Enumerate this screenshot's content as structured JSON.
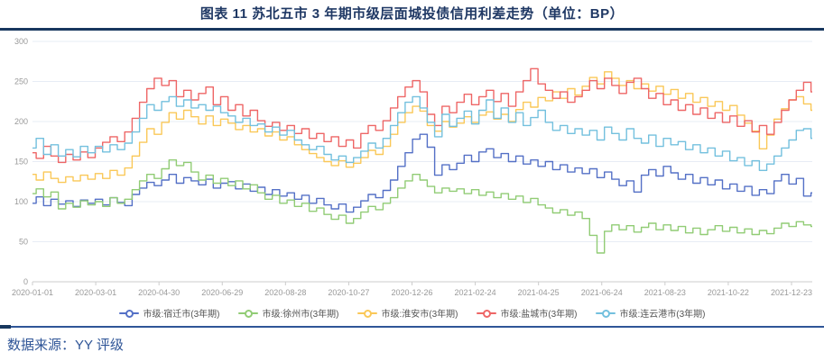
{
  "header": {
    "title": "图表 11 苏北五市 3 年期市级层面城投债信用利差走势（单位：BP）"
  },
  "footer": {
    "source": "数据来源：YY 评级"
  },
  "colors": {
    "title_navy": "#1F3864",
    "rule_navy": "#17375E",
    "footer_blue": "#2F5597",
    "axis_label_gray": "#999999",
    "axis_line": "#CCCCCC",
    "gridline": "#E7ECF5",
    "legend_text": "#555555",
    "background": "#FFFFFF"
  },
  "chart_data": {
    "type": "line",
    "title": "图表 11 苏北五市 3 年期市级层面城投债信用利差走势（单位：BP）",
    "unit": "BP",
    "ylabel": "",
    "xlabel": "",
    "ylim": [
      0,
      300
    ],
    "y_ticks": [
      0,
      50,
      100,
      150,
      200,
      250,
      300
    ],
    "grid": true,
    "legend_position": "bottom",
    "x_start": "2020-01-01",
    "x_end": "2022-01-12",
    "x_sampling": "weekly",
    "x_tick_labels": [
      "2020-01-01",
      "2020-03-01",
      "2020-04-30",
      "2020-06-29",
      "2020-08-28",
      "2020-10-27",
      "2020-12-26",
      "2021-02-24",
      "2021-04-25",
      "2021-06-24",
      "2021-08-23",
      "2021-10-22",
      "2021-12-23"
    ],
    "series": [
      {
        "name": "市级:宿迁市(3年期)",
        "color": "#5470C6",
        "values": [
          98,
          106,
          95,
          103,
          97,
          101,
          94,
          102,
          98,
          103,
          96,
          105,
          99,
          95,
          109,
          117,
          124,
          120,
          127,
          134,
          123,
          130,
          126,
          121,
          128,
          117,
          123,
          125,
          116,
          122,
          113,
          118,
          109,
          115,
          107,
          111,
          103,
          108,
          98,
          104,
          96,
          91,
          97,
          87,
          93,
          101,
          109,
          105,
          114,
          127,
          144,
          161,
          178,
          184,
          168,
          133,
          146,
          140,
          148,
          158,
          150,
          162,
          166,
          155,
          160,
          150,
          157,
          147,
          152,
          144,
          150,
          140,
          146,
          137,
          142,
          135,
          141,
          130,
          137,
          128,
          120,
          126,
          112,
          133,
          140,
          132,
          144,
          136,
          128,
          134,
          123,
          130,
          121,
          127,
          116,
          122,
          113,
          119,
          108,
          115,
          110,
          126,
          134,
          122,
          129,
          107,
          111
        ]
      },
      {
        "name": "市级:徐州市(3年期)",
        "color": "#91CC75",
        "values": [
          110,
          116,
          106,
          112,
          91,
          98,
          93,
          101,
          96,
          100,
          94,
          105,
          98,
          103,
          115,
          126,
          134,
          129,
          141,
          152,
          145,
          149,
          137,
          127,
          133,
          123,
          129,
          120,
          126,
          116,
          121,
          111,
          103,
          108,
          98,
          102,
          94,
          98,
          88,
          92,
          84,
          78,
          83,
          73,
          79,
          87,
          94,
          90,
          98,
          105,
          117,
          126,
          134,
          127,
          119,
          111,
          117,
          113,
          116,
          110,
          115,
          108,
          112,
          105,
          110,
          103,
          107,
          99,
          104,
          96,
          92,
          86,
          90,
          83,
          87,
          79,
          58,
          36,
          63,
          71,
          65,
          70,
          62,
          68,
          73,
          65,
          71,
          64,
          69,
          61,
          67,
          59,
          65,
          70,
          63,
          68,
          61,
          66,
          59,
          64,
          60,
          67,
          73,
          69,
          75,
          71,
          69
        ]
      },
      {
        "name": "市级:淮安市(3年期)",
        "color": "#FAC858",
        "values": [
          134,
          127,
          137,
          129,
          124,
          131,
          126,
          133,
          128,
          135,
          129,
          139,
          133,
          142,
          157,
          174,
          191,
          184,
          199,
          211,
          203,
          214,
          206,
          197,
          207,
          195,
          203,
          198,
          190,
          195,
          187,
          191,
          182,
          187,
          177,
          181,
          171,
          165,
          160,
          155,
          150,
          145,
          151,
          143,
          148,
          155,
          164,
          159,
          169,
          184,
          199,
          211,
          219,
          213,
          195,
          188,
          200,
          193,
          198,
          206,
          199,
          208,
          212,
          203,
          209,
          200,
          215,
          224,
          218,
          230,
          226,
          237,
          229,
          241,
          233,
          244,
          255,
          247,
          262,
          254,
          245,
          251,
          241,
          247,
          238,
          244,
          234,
          240,
          229,
          235,
          224,
          230,
          219,
          225,
          214,
          220,
          208,
          198,
          188,
          166,
          183,
          203,
          216,
          227,
          231,
          222,
          214
        ]
      },
      {
        "name": "市级:盐城市(3年期)",
        "color": "#EE6666",
        "values": [
          161,
          154,
          169,
          157,
          149,
          159,
          152,
          162,
          155,
          167,
          174,
          181,
          175,
          187,
          204,
          224,
          241,
          254,
          245,
          251,
          231,
          239,
          227,
          235,
          243,
          221,
          231,
          214,
          221,
          207,
          214,
          201,
          194,
          199,
          189,
          195,
          185,
          191,
          179,
          185,
          175,
          181,
          169,
          177,
          167,
          185,
          195,
          189,
          201,
          217,
          231,
          243,
          251,
          237,
          209,
          195,
          219,
          211,
          224,
          234,
          221,
          231,
          239,
          225,
          235,
          219,
          237,
          251,
          266,
          247,
          239,
          229,
          237,
          224,
          231,
          239,
          251,
          241,
          254,
          245,
          235,
          249,
          254,
          241,
          229,
          235,
          221,
          227,
          214,
          221,
          209,
          217,
          204,
          211,
          199,
          207,
          194,
          201,
          187,
          195,
          184,
          199,
          214,
          227,
          239,
          249,
          237
        ]
      },
      {
        "name": "市级:连云港市(3年期)",
        "color": "#73C0DE",
        "values": [
          167,
          179,
          159,
          171,
          157,
          165,
          156,
          169,
          161,
          169,
          162,
          171,
          165,
          173,
          187,
          204,
          221,
          214,
          225,
          231,
          219,
          227,
          217,
          221,
          214,
          219,
          211,
          207,
          199,
          204,
          195,
          197,
          187,
          193,
          183,
          189,
          177,
          171,
          165,
          169,
          159,
          152,
          157,
          149,
          155,
          163,
          173,
          167,
          179,
          195,
          211,
          224,
          231,
          217,
          199,
          181,
          209,
          194,
          204,
          213,
          197,
          214,
          227,
          204,
          217,
          199,
          211,
          195,
          205,
          214,
          199,
          189,
          195,
          185,
          191,
          183,
          189,
          177,
          193,
          185,
          177,
          191,
          179,
          173,
          183,
          169,
          179,
          171,
          175,
          165,
          171,
          161,
          167,
          157,
          163,
          151,
          155,
          145,
          151,
          139,
          147,
          157,
          167,
          177,
          189,
          191,
          179
        ]
      }
    ]
  }
}
